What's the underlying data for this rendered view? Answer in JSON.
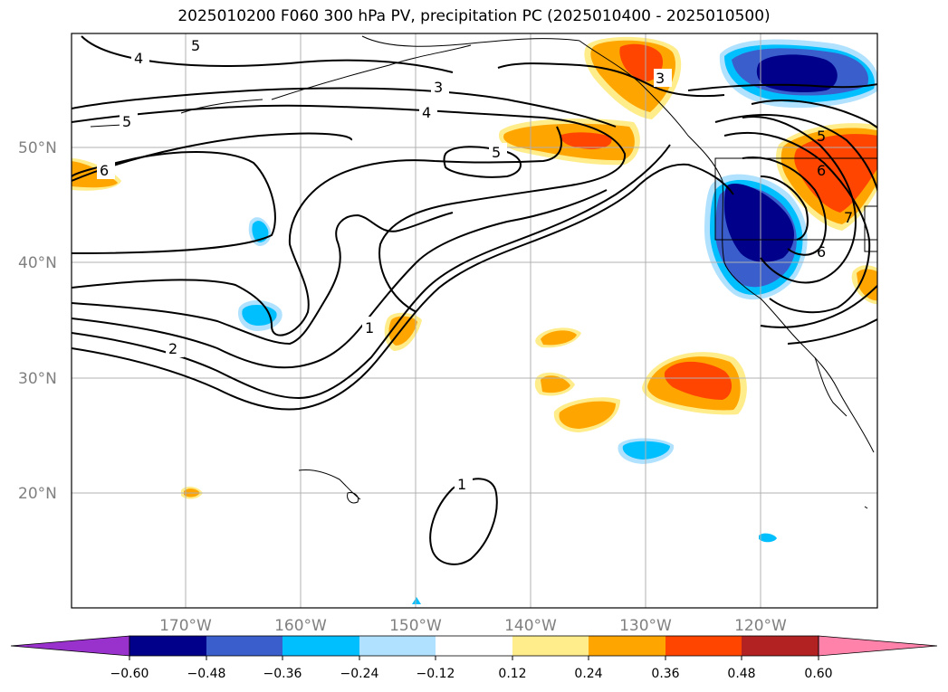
{
  "title": "2025010200 F060 300 hPa PV, precipitation PC (2025010400 - 2025010500)",
  "lat_labels": [
    "50°N",
    "40°N",
    "30°N",
    "20°N"
  ],
  "lon_labels": [
    "170°W",
    "160°W",
    "150°W",
    "140°W",
    "130°W",
    "120°W"
  ],
  "contour_labels": [
    "5",
    "4",
    "5",
    "6",
    "3",
    "4",
    "5",
    "3",
    "2",
    "1",
    "1",
    "6",
    "7",
    "6",
    "5"
  ],
  "colorbar": {
    "ticks": [
      "−0.60",
      "−0.48",
      "−0.36",
      "−0.24",
      "−0.12",
      "0.12",
      "0.24",
      "0.36",
      "0.48",
      "0.60"
    ],
    "colors": [
      "#9932cc",
      "#00008b",
      "#3a5fcd",
      "#00bfff",
      "#b0e2ff",
      "#ffffff",
      "#ffec8b",
      "#ffa500",
      "#ff4500",
      "#b22222",
      "#ff82ab"
    ]
  },
  "colors": {
    "neg_dark": "#00008b",
    "neg_mid": "#3a5fcd",
    "neg_light": "#00bfff",
    "neg_pale": "#b0e2ff",
    "pos_pale": "#ffec8b",
    "pos_mid": "#ffa500",
    "pos_dark": "#ff4500",
    "grid": "#b0b0b0"
  }
}
